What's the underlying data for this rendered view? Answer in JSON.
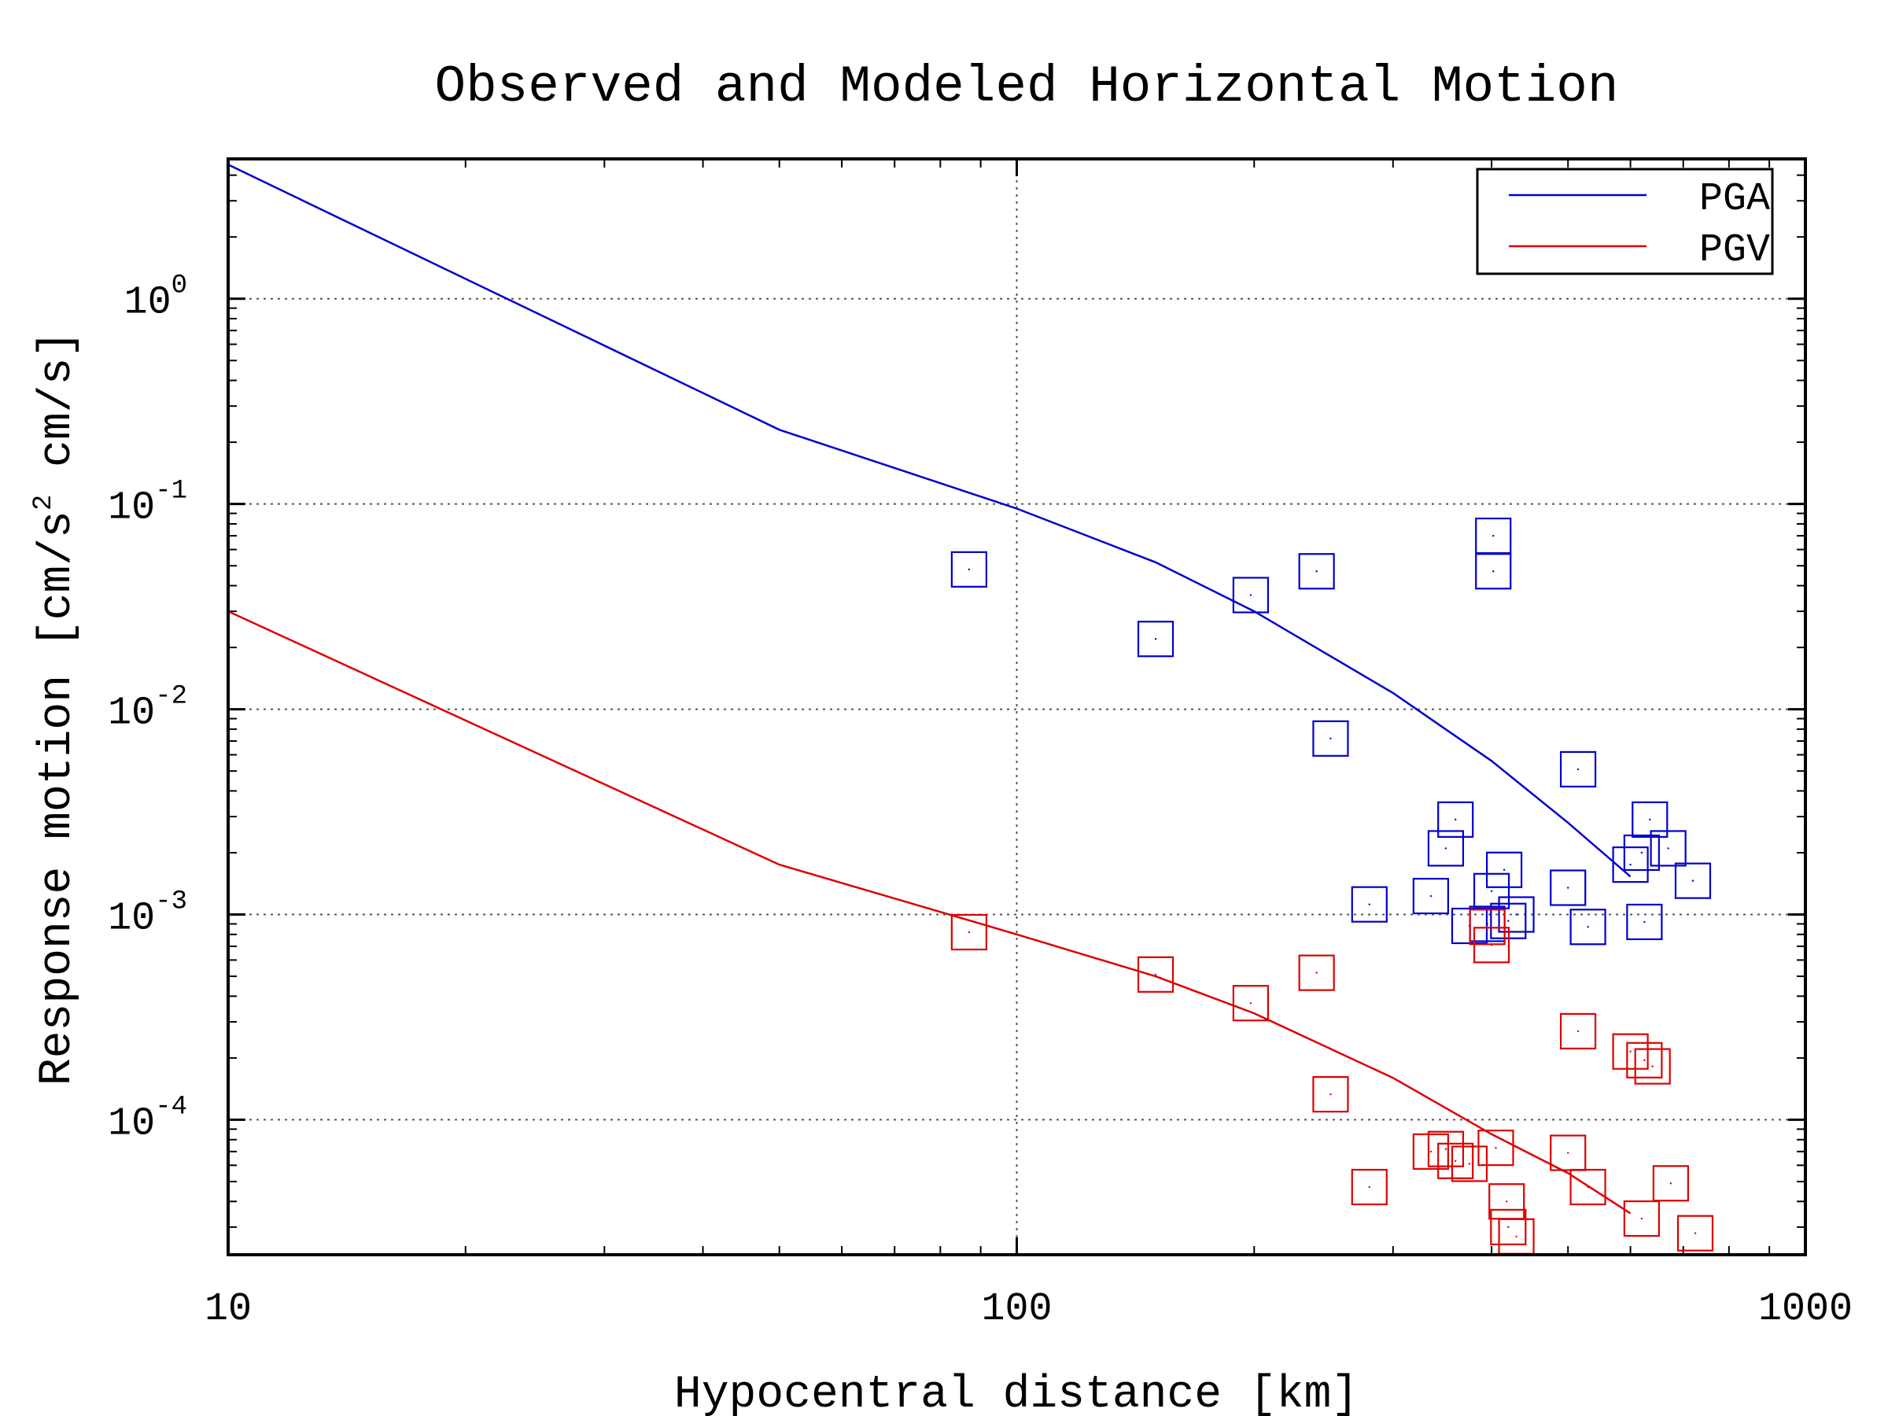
{
  "chart_data": {
    "type": "scatter",
    "title": "Observed and Modeled Horizontal Motion",
    "xlabel": "Hypocentral distance [km]",
    "ylabel": {
      "prefix": "Response motion  [cm/s",
      "sup": "2",
      "suffix": "  cm/s]"
    },
    "xscale": "log",
    "yscale": "log",
    "xlim": [
      10,
      1000
    ],
    "ylim": [
      2.2e-05,
      4.8
    ],
    "grid": true,
    "legend_position": "top-right",
    "x_ticks": [
      {
        "value": 10,
        "label": "10"
      },
      {
        "value": 100,
        "label": "100"
      },
      {
        "value": 1000,
        "label": "1000"
      }
    ],
    "y_ticks": [
      {
        "value": 1,
        "base": "10",
        "exp": "0"
      },
      {
        "value": 0.1,
        "base": "10",
        "exp": "-1"
      },
      {
        "value": 0.01,
        "base": "10",
        "exp": "-2"
      },
      {
        "value": 0.001,
        "base": "10",
        "exp": "-3"
      },
      {
        "value": 0.0001,
        "base": "10",
        "exp": "-4"
      }
    ],
    "series": [
      {
        "name": "PGA",
        "color": "#0000cc",
        "model_line": [
          [
            10,
            4.5
          ],
          [
            50,
            0.23
          ],
          [
            100,
            0.095
          ],
          [
            150,
            0.052
          ],
          [
            200,
            0.03
          ],
          [
            300,
            0.012
          ],
          [
            400,
            0.0056
          ],
          [
            500,
            0.0028
          ],
          [
            600,
            0.00153
          ]
        ],
        "observed": [
          [
            87,
            0.048
          ],
          [
            150,
            0.022
          ],
          [
            198,
            0.036
          ],
          [
            240,
            0.047
          ],
          [
            250,
            0.0072
          ],
          [
            280,
            0.00112
          ],
          [
            335,
            0.00123
          ],
          [
            350,
            0.0021
          ],
          [
            360,
            0.0029
          ],
          [
            375,
            0.00088
          ],
          [
            395,
            0.0009
          ],
          [
            400,
            0.0013
          ],
          [
            402,
            0.07
          ],
          [
            402,
            0.047
          ],
          [
            415,
            0.00165
          ],
          [
            420,
            0.00093
          ],
          [
            430,
            0.001
          ],
          [
            500,
            0.00135
          ],
          [
            515,
            0.0051
          ],
          [
            530,
            0.00087
          ],
          [
            600,
            0.00175
          ],
          [
            620,
            0.002
          ],
          [
            625,
            0.00092
          ],
          [
            635,
            0.0029
          ],
          [
            670,
            0.0021
          ],
          [
            720,
            0.00146
          ]
        ]
      },
      {
        "name": "PGV",
        "color": "#dd0000",
        "model_line": [
          [
            10,
            0.03
          ],
          [
            50,
            0.00175
          ],
          [
            100,
            0.0008
          ],
          [
            150,
            0.0005
          ],
          [
            200,
            0.00033
          ],
          [
            300,
            0.00016
          ],
          [
            400,
            8.5e-05
          ],
          [
            500,
            5.5e-05
          ],
          [
            600,
            3.5e-05
          ]
        ],
        "observed": [
          [
            87,
            0.00082
          ],
          [
            150,
            0.00051
          ],
          [
            198,
            0.00037
          ],
          [
            240,
            0.00052
          ],
          [
            250,
            0.000133
          ],
          [
            280,
            4.7e-05
          ],
          [
            335,
            7e-05
          ],
          [
            350,
            7.2e-05
          ],
          [
            360,
            6.3e-05
          ],
          [
            375,
            6.1e-05
          ],
          [
            395,
            0.00087
          ],
          [
            400,
            0.00071
          ],
          [
            405,
            7.3e-05
          ],
          [
            418,
            4e-05
          ],
          [
            420,
            3e-05
          ],
          [
            430,
            2.7e-05
          ],
          [
            500,
            6.9e-05
          ],
          [
            515,
            0.00027
          ],
          [
            530,
            4.7e-05
          ],
          [
            600,
            0.000215
          ],
          [
            620,
            3.3e-05
          ],
          [
            625,
            0.000195
          ],
          [
            640,
            0.000182
          ],
          [
            675,
            4.9e-05
          ],
          [
            725,
            2.8e-05
          ]
        ]
      }
    ]
  }
}
